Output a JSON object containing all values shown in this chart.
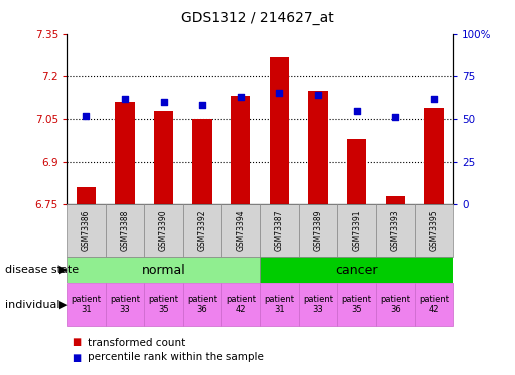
{
  "title": "GDS1312 / 214627_at",
  "samples": [
    "GSM73386",
    "GSM73388",
    "GSM73390",
    "GSM73392",
    "GSM73394",
    "GSM73387",
    "GSM73389",
    "GSM73391",
    "GSM73393",
    "GSM73395"
  ],
  "transformed_count": [
    6.81,
    7.11,
    7.08,
    7.05,
    7.13,
    7.27,
    7.15,
    6.98,
    6.78,
    7.09
  ],
  "percentile_rank": [
    52,
    62,
    60,
    58,
    63,
    65,
    64,
    55,
    51,
    62
  ],
  "ylim_left": [
    6.75,
    7.35
  ],
  "ylim_right": [
    0,
    100
  ],
  "yticks_left": [
    6.75,
    6.9,
    7.05,
    7.2,
    7.35
  ],
  "yticks_right": [
    0,
    25,
    50,
    75,
    100
  ],
  "ytick_labels_left": [
    "6.75",
    "6.9",
    "7.05",
    "7.2",
    "7.35"
  ],
  "ytick_labels_right": [
    "0",
    "25",
    "50",
    "75",
    "100%"
  ],
  "individuals": [
    "patient\n31",
    "patient\n33",
    "patient\n35",
    "patient\n36",
    "patient\n42",
    "patient\n31",
    "patient\n33",
    "patient\n35",
    "patient\n36",
    "patient\n42"
  ],
  "bar_color": "#cc0000",
  "dot_color": "#0000cc",
  "axis_left_color": "#cc0000",
  "axis_right_color": "#0000cc",
  "sample_box_color": "#d3d3d3",
  "disease_normal_color": "#90EE90",
  "disease_cancer_color": "#00CC00",
  "individual_bg_color": "#EE82EE",
  "bar_width": 0.5,
  "dot_size": 18
}
